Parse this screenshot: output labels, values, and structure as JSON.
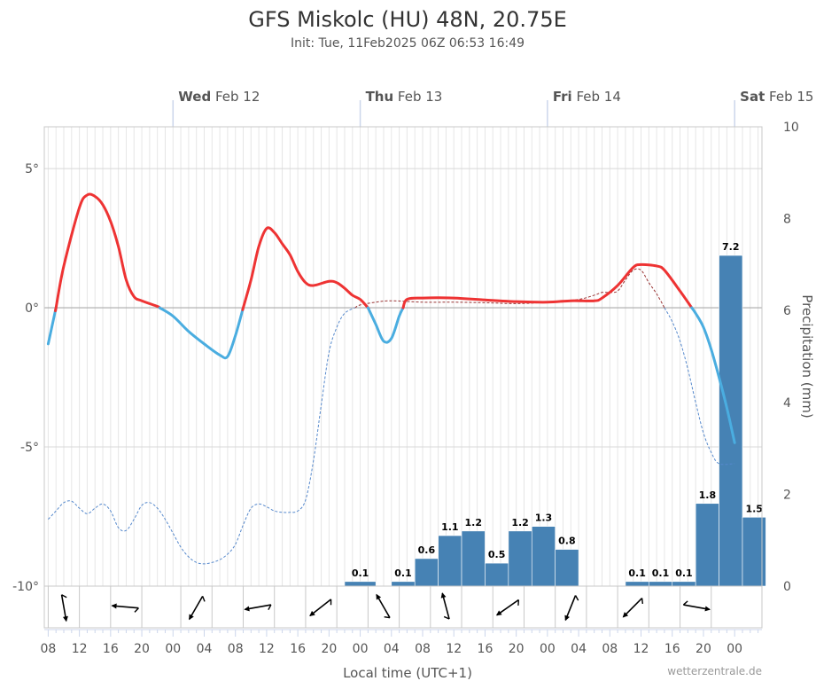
{
  "header": {
    "title": "GFS Miskolc (HU) 48N, 20.75E",
    "subtitle": "Init: Tue, 11Feb2025 06Z 06:53 16:49"
  },
  "footer": {
    "xlabel": "Local time (UTC+1)",
    "credit": "wetterzentrale.de"
  },
  "colors": {
    "warm": "#ee3333",
    "cold": "#4aade0",
    "bar": "#4682b4",
    "dewpoint": "#5588cc",
    "dewpoint_warm": "#993333",
    "grid": "#e6e6e6",
    "zero": "#aaaaaa"
  },
  "chart_data": {
    "type": "line+bar",
    "x_unit": "hours since Tue Feb 11 08:00 local",
    "xlim": [
      -0.5,
      91.5
    ],
    "days": [
      {
        "name": "Wed",
        "date": "Feb 12",
        "x": 16
      },
      {
        "name": "Thu",
        "date": "Feb 13",
        "x": 40
      },
      {
        "name": "Fri",
        "date": "Feb 14",
        "x": 64
      },
      {
        "name": "Sat",
        "date": "Feb 15",
        "x": 88
      }
    ],
    "x_ticks": [
      {
        "x": 0,
        "label": "08"
      },
      {
        "x": 4,
        "label": "12"
      },
      {
        "x": 8,
        "label": "16"
      },
      {
        "x": 12,
        "label": "20"
      },
      {
        "x": 16,
        "label": "00"
      },
      {
        "x": 20,
        "label": "04"
      },
      {
        "x": 24,
        "label": "08"
      },
      {
        "x": 28,
        "label": "12"
      },
      {
        "x": 32,
        "label": "16"
      },
      {
        "x": 36,
        "label": "20"
      },
      {
        "x": 40,
        "label": "00"
      },
      {
        "x": 44,
        "label": "04"
      },
      {
        "x": 48,
        "label": "08"
      },
      {
        "x": 52,
        "label": "12"
      },
      {
        "x": 56,
        "label": "16"
      },
      {
        "x": 60,
        "label": "20"
      },
      {
        "x": 64,
        "label": "00"
      },
      {
        "x": 68,
        "label": "04"
      },
      {
        "x": 72,
        "label": "08"
      },
      {
        "x": 76,
        "label": "12"
      },
      {
        "x": 80,
        "label": "16"
      },
      {
        "x": 84,
        "label": "20"
      },
      {
        "x": 88,
        "label": "00"
      }
    ],
    "temp_axis": {
      "ylim": [
        -10,
        6.5
      ],
      "ticks": [
        {
          "v": 5,
          "label": "5°"
        },
        {
          "v": 0,
          "label": "0°"
        },
        {
          "v": -5,
          "label": "-5°"
        },
        {
          "v": -10,
          "label": "-10°"
        }
      ]
    },
    "precip_axis": {
      "label": "Precipitation (mm)",
      "ylim": [
        0,
        10
      ],
      "ticks": [
        0,
        2,
        4,
        6,
        8,
        10
      ]
    },
    "temperature": [
      [
        0,
        -1.3
      ],
      [
        1,
        0
      ],
      [
        2,
        1.5
      ],
      [
        4,
        3.6
      ],
      [
        5,
        4.05
      ],
      [
        6,
        4.0
      ],
      [
        7,
        3.7
      ],
      [
        8,
        3.1
      ],
      [
        9,
        2.2
      ],
      [
        10,
        1.0
      ],
      [
        11,
        0.4
      ],
      [
        12,
        0.25
      ],
      [
        14,
        0.05
      ],
      [
        16,
        -0.3
      ],
      [
        18,
        -0.85
      ],
      [
        20,
        -1.3
      ],
      [
        22,
        -1.7
      ],
      [
        23,
        -1.75
      ],
      [
        24,
        -1.0
      ],
      [
        25,
        0
      ],
      [
        26,
        1.0
      ],
      [
        27,
        2.2
      ],
      [
        28,
        2.85
      ],
      [
        29,
        2.7
      ],
      [
        30,
        2.3
      ],
      [
        31,
        1.9
      ],
      [
        32,
        1.3
      ],
      [
        33,
        0.9
      ],
      [
        34,
        0.8
      ],
      [
        36,
        0.95
      ],
      [
        37,
        0.9
      ],
      [
        38,
        0.7
      ],
      [
        39,
        0.45
      ],
      [
        40,
        0.3
      ],
      [
        41,
        0
      ],
      [
        42,
        -0.6
      ],
      [
        43,
        -1.2
      ],
      [
        44,
        -1.1
      ],
      [
        45,
        -0.3
      ],
      [
        46,
        0.3
      ],
      [
        48,
        0.35
      ],
      [
        52,
        0.35
      ],
      [
        56,
        0.28
      ],
      [
        60,
        0.22
      ],
      [
        64,
        0.2
      ],
      [
        67,
        0.25
      ],
      [
        70,
        0.25
      ],
      [
        71,
        0.35
      ],
      [
        73,
        0.8
      ],
      [
        75,
        1.45
      ],
      [
        76,
        1.55
      ],
      [
        78,
        1.5
      ],
      [
        79,
        1.35
      ],
      [
        81,
        0.6
      ],
      [
        82,
        0.2
      ],
      [
        83,
        -0.2
      ],
      [
        84,
        -0.7
      ],
      [
        85,
        -1.5
      ],
      [
        86,
        -2.5
      ],
      [
        87,
        -3.6
      ],
      [
        88,
        -4.85
      ]
    ],
    "dewpoint": [
      [
        0,
        -7.6
      ],
      [
        1,
        -7.3
      ],
      [
        2,
        -7.0
      ],
      [
        3,
        -6.95
      ],
      [
        4,
        -7.2
      ],
      [
        5,
        -7.4
      ],
      [
        6,
        -7.2
      ],
      [
        7,
        -7.05
      ],
      [
        8,
        -7.3
      ],
      [
        9,
        -7.9
      ],
      [
        10,
        -8.0
      ],
      [
        11,
        -7.6
      ],
      [
        12,
        -7.1
      ],
      [
        13,
        -7.0
      ],
      [
        14,
        -7.2
      ],
      [
        15,
        -7.6
      ],
      [
        16,
        -8.1
      ],
      [
        17,
        -8.6
      ],
      [
        18,
        -8.95
      ],
      [
        19,
        -9.15
      ],
      [
        20,
        -9.2
      ],
      [
        21,
        -9.15
      ],
      [
        22,
        -9.05
      ],
      [
        23,
        -8.85
      ],
      [
        24,
        -8.5
      ],
      [
        25,
        -7.8
      ],
      [
        26,
        -7.2
      ],
      [
        27,
        -7.05
      ],
      [
        28,
        -7.15
      ],
      [
        29,
        -7.3
      ],
      [
        30,
        -7.35
      ],
      [
        31,
        -7.35
      ],
      [
        32,
        -7.3
      ],
      [
        33,
        -6.9
      ],
      [
        34,
        -5.5
      ],
      [
        35,
        -3.5
      ],
      [
        36,
        -1.6
      ],
      [
        37,
        -0.7
      ],
      [
        38,
        -0.2
      ],
      [
        40,
        0.1
      ],
      [
        42,
        0.2
      ],
      [
        44,
        0.25
      ],
      [
        48,
        0.2
      ],
      [
        52,
        0.2
      ],
      [
        56,
        0.18
      ],
      [
        60,
        0.15
      ],
      [
        64,
        0.2
      ],
      [
        68,
        0.3
      ],
      [
        70,
        0.45
      ],
      [
        71,
        0.55
      ],
      [
        72,
        0.55
      ],
      [
        73,
        0.6
      ],
      [
        74,
        1.0
      ],
      [
        75,
        1.35
      ],
      [
        76,
        1.35
      ],
      [
        77,
        0.9
      ],
      [
        78,
        0.5
      ],
      [
        79,
        0.0
      ],
      [
        80,
        -0.5
      ],
      [
        81,
        -1.2
      ],
      [
        82,
        -2.2
      ],
      [
        83,
        -3.4
      ],
      [
        84,
        -4.5
      ],
      [
        85,
        -5.2
      ],
      [
        86,
        -5.6
      ],
      [
        88,
        -5.6
      ]
    ],
    "precipitation": [
      {
        "x0": 38,
        "x1": 42,
        "v": 0.1
      },
      {
        "x0": 44,
        "x1": 47,
        "v": 0.1
      },
      {
        "x0": 47,
        "x1": 50,
        "v": 0.6
      },
      {
        "x0": 50,
        "x1": 53,
        "v": 1.1
      },
      {
        "x0": 53,
        "x1": 56,
        "v": 1.2
      },
      {
        "x0": 56,
        "x1": 59,
        "v": 0.5
      },
      {
        "x0": 59,
        "x1": 62,
        "v": 1.2
      },
      {
        "x0": 62,
        "x1": 65,
        "v": 1.3
      },
      {
        "x0": 65,
        "x1": 68,
        "v": 0.8
      },
      {
        "x0": 74,
        "x1": 77,
        "v": 0.1
      },
      {
        "x0": 77,
        "x1": 80,
        "v": 0.1
      },
      {
        "x0": 80,
        "x1": 83,
        "v": 0.1
      },
      {
        "x0": 83,
        "x1": 86,
        "v": 1.8
      },
      {
        "x0": 86,
        "x1": 89,
        "v": 7.2
      },
      {
        "x0": 89,
        "x1": 92,
        "v": 1.5
      }
    ],
    "wind": [
      {
        "x": 2,
        "dir": 350
      },
      {
        "x": 10,
        "dir": 95
      },
      {
        "x": 19,
        "dir": 30
      },
      {
        "x": 27,
        "dir": 80
      },
      {
        "x": 35,
        "dir": 52
      },
      {
        "x": 43,
        "dir": 150
      },
      {
        "x": 51,
        "dir": 165
      },
      {
        "x": 59,
        "dir": 55
      },
      {
        "x": 67,
        "dir": 22
      },
      {
        "x": 75,
        "dir": 45
      },
      {
        "x": 83,
        "dir": 280
      }
    ]
  }
}
